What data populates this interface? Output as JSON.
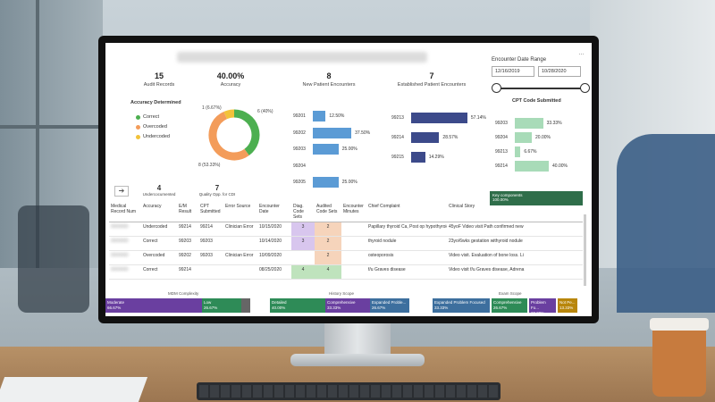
{
  "kpis": [
    {
      "value": "15",
      "label": "Audit Records"
    },
    {
      "value": "40.00%",
      "label": "Accuracy"
    },
    {
      "value": "8",
      "label": "New Patient Encounters"
    },
    {
      "value": "7",
      "label": "Established Patient Encounters"
    }
  ],
  "date_range": {
    "title": "Encounter Date Range",
    "start": "12/16/2019",
    "end": "10/28/2020"
  },
  "accuracy": {
    "title": "Accuracy Determined",
    "legend": [
      {
        "label": "Correct",
        "color": "#4caf50"
      },
      {
        "label": "Overcoded",
        "color": "#f39c5a"
      },
      {
        "label": "Undercoded",
        "color": "#f2c23a"
      }
    ],
    "donut_labels": {
      "top_left": "1 (6.67%)",
      "top_right": "6 (40%)",
      "bottom": "8 (53.33%)"
    }
  },
  "chart_data": [
    {
      "type": "pie",
      "categories": [
        "Correct",
        "Overcoded",
        "Undercoded"
      ],
      "values": [
        6,
        8,
        1
      ],
      "colors": [
        "#4caf50",
        "#f39c5a",
        "#f2c23a"
      ]
    },
    {
      "type": "bar",
      "orientation": "horizontal",
      "categories": [
        "99201",
        "99202",
        "99203",
        "99204",
        "99205"
      ],
      "values": [
        12.5,
        37.5,
        25.0,
        0,
        25.0
      ],
      "labels": [
        "12.50%",
        "37.50%",
        "25.00%",
        "",
        "25.00%"
      ],
      "color": "#5b9bd5"
    },
    {
      "type": "bar",
      "orientation": "horizontal",
      "categories": [
        "99213",
        "99214",
        "99215"
      ],
      "values": [
        57.14,
        28.57,
        14.29
      ],
      "labels": [
        "57.14%",
        "28.57%",
        "14.29%"
      ],
      "color": "#3c4a8a"
    },
    {
      "type": "bar",
      "orientation": "horizontal",
      "title": "CPT Code Submitted",
      "categories": [
        "99203",
        "99204",
        "99213",
        "99214"
      ],
      "values": [
        33.33,
        20.0,
        6.67,
        40.0
      ],
      "labels": [
        "33.33%",
        "20.00%",
        "6.67%",
        "40.00%"
      ],
      "color": "#a8dbb8"
    }
  ],
  "cpt_title": "CPT Code Submitted",
  "mini_kpis": [
    {
      "value": "4",
      "label": "Undercocumented"
    },
    {
      "value": "7",
      "label": "Quality Opp. for CDI"
    }
  ],
  "dark_bar": {
    "line1": "Key components",
    "line2": "100.00%"
  },
  "table": {
    "headers": [
      "Medical Record Num",
      "Accuracy",
      "E/M Result",
      "CPT Submitted",
      "Error Source",
      "Encounter Date",
      "Diag. Code Sets",
      "Audited Code Sets",
      "Encounter Minutes",
      "Chief Complaint",
      "Clinical Story"
    ],
    "rows": [
      [
        "",
        "Undercoded",
        "99214",
        "99214",
        "Clinician Error",
        "10/15/2020",
        "3",
        "2",
        "",
        "Papillary thyroid Ca, Post op hypothyroidism",
        "45yoF Video visit Path confirmed new"
      ],
      [
        "",
        "Correct",
        "99203",
        "99203",
        "",
        "10/14/2020",
        "3",
        "2",
        "",
        "thyroid nodule",
        "23yo/6wks gestation withyroid nodule"
      ],
      [
        "",
        "Overcoded",
        "99202",
        "99203",
        "Clinician Error",
        "10/09/2020",
        "",
        "2",
        "",
        "osteoporosis",
        "Video visit. Evaluation of bone loss. Li"
      ],
      [
        "",
        "Correct",
        "99214",
        "",
        "",
        "08/25/2020",
        "4",
        "4",
        "",
        "f/u Graves disease",
        "Video visit f/u Graves disease, Adrena"
      ]
    ]
  },
  "bottom": {
    "mdm_title": "MDM Complexity",
    "history_title": "History Scope",
    "exam_title": "Exam Scope",
    "segments": [
      {
        "label": "Moderate",
        "pct": "66.67%",
        "color": "#6a3fa0"
      },
      {
        "label": "Low",
        "pct": "26.67%",
        "color": "#2e8b57"
      },
      {
        "label": "Detailed",
        "pct": "40.00%",
        "color": "#2e8b57"
      },
      {
        "label": "Comprehensive",
        "pct": "33.33%",
        "color": "#6a3fa0"
      },
      {
        "label": "Expanded Proble...",
        "pct": "26.67%",
        "color": "#3d6f9e"
      },
      {
        "label": "Expanded Problem Focused",
        "pct": "33.33%",
        "color": "#3d6f9e"
      },
      {
        "label": "Comprehensive",
        "pct": "26.67%",
        "color": "#2e8b57"
      },
      {
        "label": "Problem Fo...",
        "pct": "20.00%",
        "color": "#6a3fa0"
      },
      {
        "label": "Not Pe...",
        "pct": "13.33%",
        "color": "#b8860b"
      }
    ]
  }
}
